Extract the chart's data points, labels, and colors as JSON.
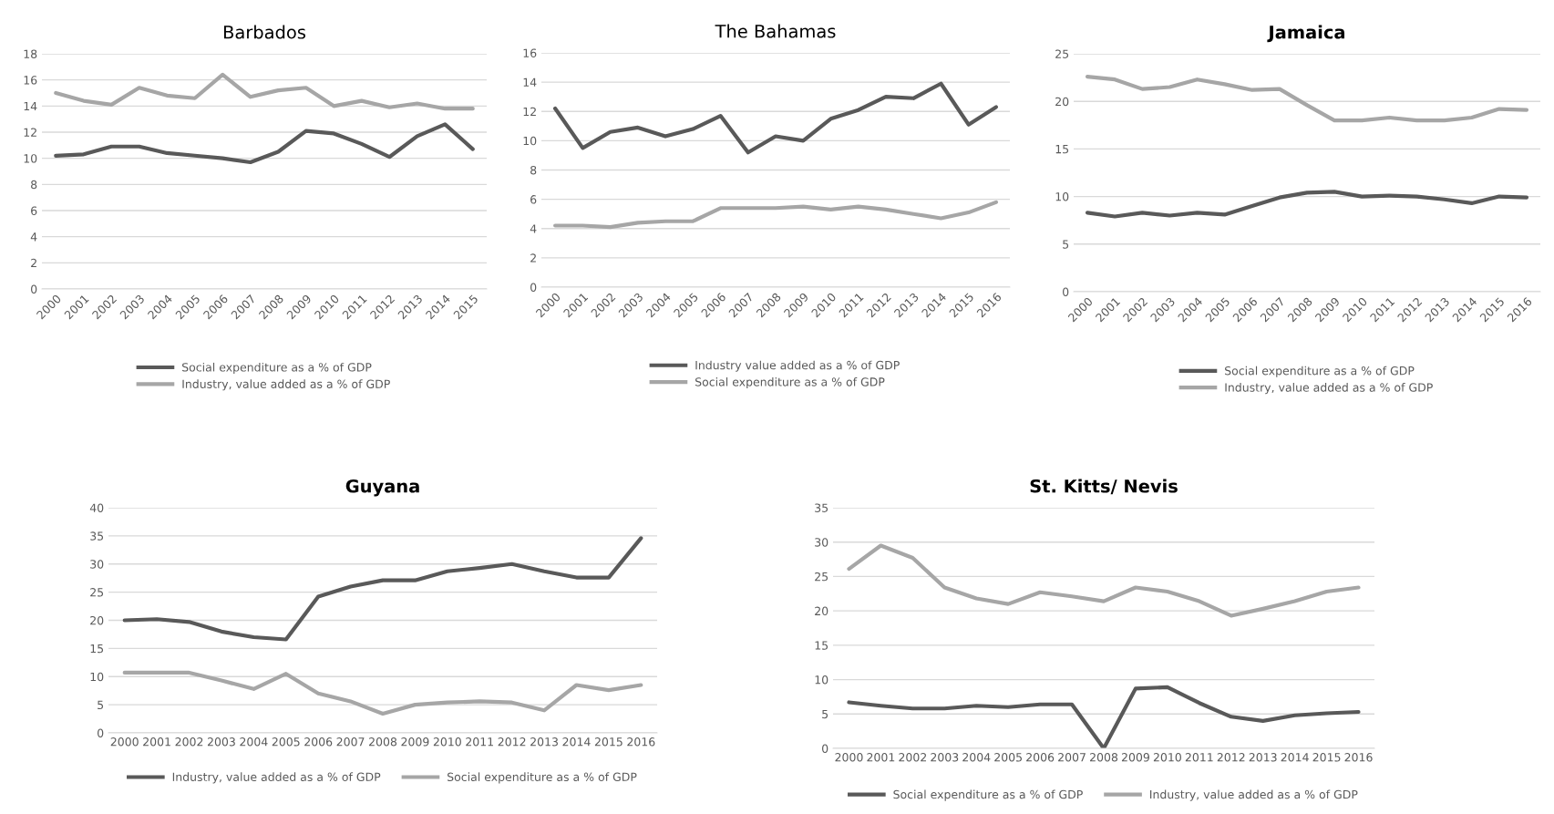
{
  "chart_data": [
    {
      "type": "line",
      "title": "Barbados",
      "categories": [
        "2000",
        "2001",
        "2002",
        "2003",
        "2004",
        "2005",
        "2006",
        "2007",
        "2008",
        "2009",
        "2010",
        "2011",
        "2012",
        "2013",
        "2014",
        "2015"
      ],
      "ylim": [
        0,
        18
      ],
      "yticks": [
        0,
        2,
        4,
        6,
        8,
        10,
        12,
        14,
        16,
        18
      ],
      "grid": "y",
      "legend": "bottom",
      "series": [
        {
          "name": "Social expenditure as a % of GDP",
          "color": "#595959",
          "values": [
            10.2,
            10.3,
            10.9,
            10.9,
            10.4,
            10.2,
            10.0,
            9.7,
            10.5,
            12.1,
            11.9,
            11.1,
            10.1,
            11.7,
            12.6,
            10.7
          ]
        },
        {
          "name": "Industry, value added as a % of GDP",
          "color": "#a6a6a6",
          "values": [
            15.0,
            14.4,
            14.1,
            15.4,
            14.8,
            14.6,
            16.4,
            14.7,
            15.2,
            15.4,
            14.0,
            14.4,
            13.9,
            14.2,
            13.8,
            13.8
          ]
        }
      ]
    },
    {
      "type": "line",
      "title": "The Bahamas",
      "categories": [
        "2000",
        "2001",
        "2002",
        "2003",
        "2004",
        "2005",
        "2006",
        "2007",
        "2008",
        "2009",
        "2010",
        "2011",
        "2012",
        "2013",
        "2014",
        "2015",
        "2016"
      ],
      "ylim": [
        0,
        16
      ],
      "yticks": [
        0,
        2,
        4,
        6,
        8,
        10,
        12,
        14,
        16
      ],
      "grid": "y",
      "legend": "bottom",
      "series": [
        {
          "name": "Industry value added as a % of GDP",
          "color": "#595959",
          "values": [
            12.2,
            9.5,
            10.6,
            10.9,
            10.3,
            10.8,
            11.7,
            9.2,
            10.3,
            10.0,
            11.5,
            12.1,
            13.0,
            12.9,
            13.9,
            11.1,
            12.3
          ]
        },
        {
          "name": "Social expenditure as a % of GDP",
          "color": "#a6a6a6",
          "values": [
            4.2,
            4.2,
            4.1,
            4.4,
            4.5,
            4.5,
            5.4,
            5.4,
            5.4,
            5.5,
            5.3,
            5.5,
            5.3,
            5.0,
            4.7,
            5.1,
            5.8
          ]
        }
      ]
    },
    {
      "type": "line",
      "title": "Jamaica",
      "categories": [
        "2000",
        "2001",
        "2002",
        "2003",
        "2004",
        "2005",
        "2006",
        "2007",
        "2008",
        "2009",
        "2010",
        "2011",
        "2012",
        "2013",
        "2014",
        "2015",
        "2016"
      ],
      "ylim": [
        0,
        25
      ],
      "yticks": [
        0,
        5,
        10,
        15,
        20,
        25
      ],
      "grid": "y",
      "legend": "bottom",
      "series": [
        {
          "name": "Social expenditure as a % of GDP",
          "color": "#595959",
          "values": [
            8.3,
            7.9,
            8.3,
            8.0,
            8.3,
            8.1,
            9.0,
            9.9,
            10.4,
            10.5,
            10.0,
            10.1,
            10.0,
            9.7,
            9.3,
            10.0,
            9.9
          ]
        },
        {
          "name": "Industry, value added as a % of GDP",
          "color": "#a6a6a6",
          "values": [
            22.6,
            22.3,
            21.3,
            21.5,
            22.3,
            21.8,
            21.2,
            21.3,
            19.6,
            18.0,
            18.0,
            18.3,
            18.0,
            18.0,
            18.3,
            19.2,
            19.1
          ]
        }
      ]
    },
    {
      "type": "line",
      "title": "Guyana",
      "categories": [
        "2000",
        "2001",
        "2002",
        "2003",
        "2004",
        "2005",
        "2006",
        "2007",
        "2008",
        "2009",
        "2010",
        "2011",
        "2012",
        "2013",
        "2014",
        "2015",
        "2016"
      ],
      "ylim": [
        0,
        40
      ],
      "yticks": [
        0,
        5,
        10,
        15,
        20,
        25,
        30,
        35,
        40
      ],
      "grid": "y",
      "legend": "bottom",
      "series": [
        {
          "name": "Industry, value added as a % of GDP",
          "color": "#595959",
          "values": [
            20.0,
            20.2,
            19.7,
            18.0,
            17.0,
            16.6,
            24.2,
            26.0,
            27.1,
            27.1,
            28.7,
            29.3,
            30.0,
            28.7,
            27.6,
            27.6,
            34.6
          ]
        },
        {
          "name": "Social expenditure as a % of GDP",
          "color": "#a6a6a6",
          "values": [
            10.7,
            10.7,
            10.7,
            9.3,
            7.8,
            10.5,
            7.0,
            5.6,
            3.4,
            5.0,
            5.4,
            5.6,
            5.4,
            4.0,
            8.5,
            7.6,
            8.5
          ]
        }
      ]
    },
    {
      "type": "line",
      "title": "St. Kitts/ Nevis",
      "categories": [
        "2000",
        "2001",
        "2002",
        "2003",
        "2004",
        "2005",
        "2006",
        "2007",
        "2008",
        "2009",
        "2010",
        "2011",
        "2012",
        "2013",
        "2014",
        "2015",
        "2016"
      ],
      "ylim": [
        0,
        35
      ],
      "yticks": [
        0,
        5,
        10,
        15,
        20,
        25,
        30,
        35
      ],
      "grid": "y",
      "legend": "bottom",
      "series": [
        {
          "name": "Social expenditure as a % of GDP",
          "color": "#595959",
          "values": [
            6.7,
            6.2,
            5.8,
            5.8,
            6.2,
            6.0,
            6.4,
            6.4,
            0.0,
            8.7,
            8.9,
            6.6,
            4.6,
            4.0,
            4.8,
            5.1,
            5.3
          ]
        },
        {
          "name": "Industry, value added as a % of GDP",
          "color": "#a6a6a6",
          "values": [
            26.1,
            29.5,
            27.7,
            23.4,
            21.8,
            21.0,
            22.7,
            22.1,
            21.4,
            23.4,
            22.8,
            21.4,
            19.3,
            20.3,
            21.4,
            22.8,
            23.4
          ]
        }
      ]
    }
  ]
}
